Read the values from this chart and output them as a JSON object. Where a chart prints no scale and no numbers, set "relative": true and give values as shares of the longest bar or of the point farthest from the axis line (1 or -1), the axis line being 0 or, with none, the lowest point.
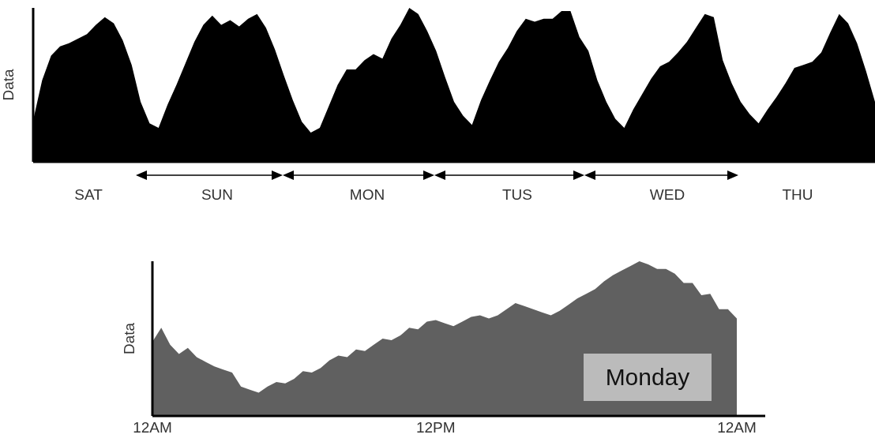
{
  "chart_data": [
    {
      "type": "area",
      "relative": true,
      "ylabel": "Data",
      "color": "#000000",
      "categories": [
        null,
        null,
        null,
        null,
        null,
        null,
        null,
        null,
        null,
        null,
        null,
        null,
        null,
        null,
        null,
        null,
        null,
        null,
        null,
        null,
        null,
        null,
        null,
        null,
        null,
        null,
        null,
        null,
        null,
        null,
        null,
        null,
        null,
        null,
        null,
        null,
        null,
        null,
        null,
        null,
        null,
        null,
        null,
        null,
        null,
        null,
        null,
        null,
        null,
        null,
        null,
        null,
        null,
        null,
        null,
        null,
        null,
        null,
        null,
        null,
        null,
        null,
        null,
        null,
        null,
        null,
        null,
        null,
        null,
        null,
        null,
        null,
        null,
        null,
        null,
        null,
        null,
        null,
        null,
        null,
        null,
        null,
        null,
        null,
        null,
        null,
        null,
        null,
        null,
        null,
        null,
        null,
        null,
        null,
        null
      ],
      "values": [
        0.27,
        0.53,
        0.69,
        0.75,
        0.77,
        0.8,
        0.83,
        0.89,
        0.94,
        0.9,
        0.79,
        0.63,
        0.39,
        0.25,
        0.22,
        0.37,
        0.5,
        0.64,
        0.78,
        0.89,
        0.95,
        0.89,
        0.92,
        0.88,
        0.93,
        0.96,
        0.87,
        0.73,
        0.56,
        0.4,
        0.26,
        0.19,
        0.22,
        0.36,
        0.5,
        0.6,
        0.6,
        0.66,
        0.7,
        0.67,
        0.8,
        0.89,
        1,
        0.96,
        0.85,
        0.72,
        0.55,
        0.39,
        0.3,
        0.24,
        0.4,
        0.53,
        0.65,
        0.74,
        0.85,
        0.93,
        0.91,
        0.93,
        0.93,
        0.98,
        0.98,
        0.81,
        0.72,
        0.53,
        0.39,
        0.28,
        0.22,
        0.34,
        0.44,
        0.54,
        0.62,
        0.65,
        0.71,
        0.78,
        0.87,
        0.96,
        0.94,
        0.66,
        0.51,
        0.39,
        0.31,
        0.25,
        0.34,
        0.42,
        0.51,
        0.61,
        0.63,
        0.65,
        0.71,
        0.84,
        0.96,
        0.9,
        0.77,
        0.59,
        0.39
      ],
      "annotations": [
        "SAT",
        "SUN",
        "MON",
        "TUS",
        "WED",
        "THU"
      ]
    },
    {
      "type": "area",
      "relative": true,
      "ylabel": "Data",
      "color": "#606060",
      "tick_labels": "x",
      "categories": [
        "12AM",
        null,
        null,
        null,
        null,
        null,
        null,
        null,
        null,
        null,
        null,
        null,
        null,
        null,
        null,
        null,
        null,
        null,
        null,
        null,
        null,
        null,
        null,
        null,
        null,
        null,
        null,
        null,
        null,
        null,
        null,
        null,
        "12PM",
        null,
        null,
        null,
        null,
        null,
        null,
        null,
        null,
        null,
        null,
        null,
        null,
        null,
        null,
        null,
        null,
        null,
        null,
        null,
        null,
        null,
        null,
        null,
        null,
        null,
        null,
        null,
        null,
        null,
        null,
        null,
        null,
        null,
        "12AM"
      ],
      "values": [
        0.48,
        0.57,
        0.46,
        0.4,
        0.44,
        0.38,
        0.35,
        0.32,
        0.3,
        0.28,
        0.19,
        0.17,
        0.15,
        0.19,
        0.22,
        0.21,
        0.24,
        0.29,
        0.28,
        0.31,
        0.36,
        0.39,
        0.38,
        0.43,
        0.42,
        0.46,
        0.5,
        0.49,
        0.52,
        0.57,
        0.56,
        0.61,
        0.62,
        0.6,
        0.58,
        0.61,
        0.64,
        0.65,
        0.63,
        0.65,
        0.69,
        0.73,
        0.71,
        0.69,
        0.67,
        0.65,
        0.68,
        0.72,
        0.76,
        0.79,
        0.82,
        0.87,
        0.91,
        0.94,
        0.97,
        1,
        0.98,
        0.95,
        0.95,
        0.92,
        0.86,
        0.86,
        0.78,
        0.79,
        0.69,
        0.69,
        0.63
      ],
      "annotations": [
        "Monday"
      ]
    }
  ]
}
